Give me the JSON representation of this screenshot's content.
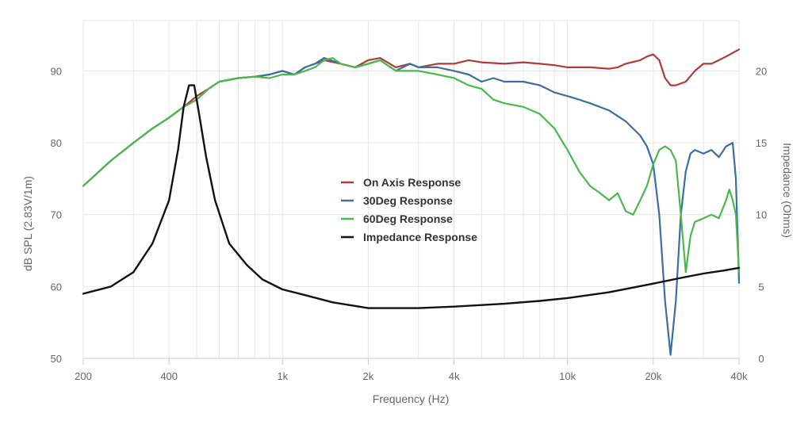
{
  "chart_data": {
    "type": "line",
    "title": "",
    "xlabel": "Frequency (Hz)",
    "ylabel_left": "dB SPL (2.83V/1m)",
    "ylabel_right": "Impedance (Ohms)",
    "x_scale": "log",
    "xlim": [
      200,
      40000
    ],
    "ylim_left": [
      50,
      97
    ],
    "ylim_right": [
      0,
      23.5
    ],
    "x_ticks": [
      {
        "value": 200,
        "label": "200"
      },
      {
        "value": 400,
        "label": "400"
      },
      {
        "value": 1000,
        "label": "1k"
      },
      {
        "value": 2000,
        "label": "2k"
      },
      {
        "value": 4000,
        "label": "4k"
      },
      {
        "value": 10000,
        "label": "10k"
      },
      {
        "value": 20000,
        "label": "20k"
      },
      {
        "value": 40000,
        "label": "40k"
      }
    ],
    "y_ticks_left": [
      {
        "value": 50,
        "label": "50"
      },
      {
        "value": 60,
        "label": "60"
      },
      {
        "value": 70,
        "label": "70"
      },
      {
        "value": 80,
        "label": "80"
      },
      {
        "value": 90,
        "label": "90"
      }
    ],
    "y_ticks_right": [
      {
        "value": 0,
        "label": "0"
      },
      {
        "value": 5,
        "label": "5"
      },
      {
        "value": 10,
        "label": "10"
      },
      {
        "value": 15,
        "label": "15"
      },
      {
        "value": 20,
        "label": "20"
      }
    ],
    "grid": true,
    "legend_position": "center",
    "series": [
      {
        "name": "On Axis Response",
        "color": "#b03a3a",
        "axis": "left",
        "points": [
          [
            200,
            74
          ],
          [
            250,
            77.5
          ],
          [
            300,
            80
          ],
          [
            350,
            82
          ],
          [
            400,
            83.5
          ],
          [
            450,
            85
          ],
          [
            500,
            86.5
          ],
          [
            550,
            87.5
          ],
          [
            600,
            88.5
          ],
          [
            700,
            89
          ],
          [
            800,
            89.2
          ],
          [
            900,
            89.5
          ],
          [
            1000,
            90
          ],
          [
            1100,
            89.5
          ],
          [
            1200,
            90.5
          ],
          [
            1300,
            91
          ],
          [
            1400,
            91.5
          ],
          [
            1600,
            91
          ],
          [
            1800,
            90.5
          ],
          [
            2000,
            91.5
          ],
          [
            2200,
            91.8
          ],
          [
            2500,
            90.5
          ],
          [
            2800,
            91
          ],
          [
            3000,
            90.5
          ],
          [
            3500,
            91
          ],
          [
            4000,
            91
          ],
          [
            4500,
            91.5
          ],
          [
            5000,
            91.2
          ],
          [
            6000,
            91
          ],
          [
            7000,
            91.2
          ],
          [
            8000,
            91
          ],
          [
            9000,
            90.8
          ],
          [
            10000,
            90.5
          ],
          [
            12000,
            90.5
          ],
          [
            14000,
            90.3
          ],
          [
            15000,
            90.5
          ],
          [
            16000,
            91
          ],
          [
            18000,
            91.5
          ],
          [
            19000,
            92
          ],
          [
            20000,
            92.3
          ],
          [
            21000,
            91.5
          ],
          [
            22000,
            89
          ],
          [
            23000,
            88
          ],
          [
            24000,
            88
          ],
          [
            26000,
            88.5
          ],
          [
            28000,
            90
          ],
          [
            30000,
            91
          ],
          [
            32000,
            91
          ],
          [
            34000,
            91.5
          ],
          [
            36000,
            92
          ],
          [
            38000,
            92.5
          ],
          [
            40000,
            93
          ]
        ]
      },
      {
        "name": "30Deg Response",
        "color": "#3a6ea5",
        "axis": "left",
        "points": [
          [
            200,
            74
          ],
          [
            250,
            77.5
          ],
          [
            300,
            80
          ],
          [
            350,
            82
          ],
          [
            400,
            83.5
          ],
          [
            450,
            85
          ],
          [
            500,
            86
          ],
          [
            550,
            87.5
          ],
          [
            600,
            88.5
          ],
          [
            700,
            89
          ],
          [
            800,
            89.2
          ],
          [
            900,
            89.5
          ],
          [
            1000,
            90
          ],
          [
            1100,
            89.5
          ],
          [
            1200,
            90.5
          ],
          [
            1300,
            91
          ],
          [
            1400,
            91.8
          ],
          [
            1600,
            91
          ],
          [
            1800,
            90.5
          ],
          [
            2000,
            91
          ],
          [
            2200,
            91.5
          ],
          [
            2500,
            90
          ],
          [
            2800,
            91
          ],
          [
            3000,
            90.5
          ],
          [
            3500,
            90.5
          ],
          [
            4000,
            90
          ],
          [
            4500,
            89.5
          ],
          [
            5000,
            88.5
          ],
          [
            5500,
            89
          ],
          [
            6000,
            88.5
          ],
          [
            7000,
            88.5
          ],
          [
            8000,
            88
          ],
          [
            8500,
            87.5
          ],
          [
            9000,
            87
          ],
          [
            10000,
            86.5
          ],
          [
            11000,
            86
          ],
          [
            12000,
            85.5
          ],
          [
            14000,
            84.5
          ],
          [
            16000,
            83
          ],
          [
            18000,
            81
          ],
          [
            19000,
            79.5
          ],
          [
            20000,
            77
          ],
          [
            21000,
            70
          ],
          [
            22000,
            58
          ],
          [
            23000,
            50.5
          ],
          [
            24000,
            58
          ],
          [
            25000,
            70
          ],
          [
            26000,
            76
          ],
          [
            27000,
            78.5
          ],
          [
            28000,
            79
          ],
          [
            30000,
            78.5
          ],
          [
            32000,
            79
          ],
          [
            34000,
            78
          ],
          [
            36000,
            79.5
          ],
          [
            38000,
            80
          ],
          [
            39000,
            75
          ],
          [
            40000,
            60.5
          ]
        ]
      },
      {
        "name": "60Deg Response",
        "color": "#4cb84c",
        "axis": "left",
        "points": [
          [
            200,
            74
          ],
          [
            250,
            77.5
          ],
          [
            300,
            80
          ],
          [
            350,
            82
          ],
          [
            400,
            83.5
          ],
          [
            450,
            85
          ],
          [
            500,
            86
          ],
          [
            550,
            87.5
          ],
          [
            600,
            88.5
          ],
          [
            700,
            89
          ],
          [
            800,
            89.2
          ],
          [
            900,
            89
          ],
          [
            1000,
            89.5
          ],
          [
            1100,
            89.5
          ],
          [
            1200,
            90
          ],
          [
            1300,
            90.5
          ],
          [
            1400,
            91.5
          ],
          [
            1500,
            91.8
          ],
          [
            1600,
            91
          ],
          [
            1800,
            90.5
          ],
          [
            2000,
            91
          ],
          [
            2200,
            91.5
          ],
          [
            2500,
            90
          ],
          [
            2800,
            90
          ],
          [
            3000,
            90
          ],
          [
            3500,
            89.5
          ],
          [
            4000,
            89
          ],
          [
            4500,
            88
          ],
          [
            5000,
            87.5
          ],
          [
            5500,
            86
          ],
          [
            6000,
            85.5
          ],
          [
            7000,
            85
          ],
          [
            8000,
            84
          ],
          [
            9000,
            82
          ],
          [
            10000,
            79
          ],
          [
            11000,
            76
          ],
          [
            12000,
            74
          ],
          [
            13000,
            73
          ],
          [
            14000,
            72
          ],
          [
            15000,
            73
          ],
          [
            16000,
            70.5
          ],
          [
            17000,
            70
          ],
          [
            18000,
            72
          ],
          [
            19000,
            74
          ],
          [
            20000,
            77
          ],
          [
            21000,
            79
          ],
          [
            22000,
            79.5
          ],
          [
            23000,
            79
          ],
          [
            24000,
            77.5
          ],
          [
            25000,
            70
          ],
          [
            26000,
            62
          ],
          [
            27000,
            67
          ],
          [
            28000,
            69
          ],
          [
            30000,
            69.5
          ],
          [
            32000,
            70
          ],
          [
            34000,
            69.5
          ],
          [
            36000,
            72
          ],
          [
            37000,
            73.5
          ],
          [
            38000,
            72
          ],
          [
            39000,
            70
          ],
          [
            40000,
            62
          ]
        ]
      },
      {
        "name": "Impedance Response",
        "color": "#111111",
        "axis": "right",
        "points": [
          [
            200,
            4.5
          ],
          [
            250,
            5
          ],
          [
            300,
            6
          ],
          [
            350,
            8
          ],
          [
            400,
            11
          ],
          [
            430,
            14.5
          ],
          [
            450,
            17.5
          ],
          [
            470,
            19
          ],
          [
            490,
            19
          ],
          [
            510,
            17
          ],
          [
            540,
            14
          ],
          [
            580,
            11
          ],
          [
            650,
            8
          ],
          [
            750,
            6.5
          ],
          [
            850,
            5.5
          ],
          [
            1000,
            4.8
          ],
          [
            1200,
            4.4
          ],
          [
            1500,
            3.9
          ],
          [
            2000,
            3.5
          ],
          [
            3000,
            3.5
          ],
          [
            4000,
            3.6
          ],
          [
            6000,
            3.8
          ],
          [
            8000,
            4
          ],
          [
            10000,
            4.2
          ],
          [
            14000,
            4.6
          ],
          [
            20000,
            5.2
          ],
          [
            25000,
            5.6
          ],
          [
            30000,
            5.9
          ],
          [
            35000,
            6.1
          ],
          [
            40000,
            6.3
          ]
        ]
      }
    ]
  }
}
